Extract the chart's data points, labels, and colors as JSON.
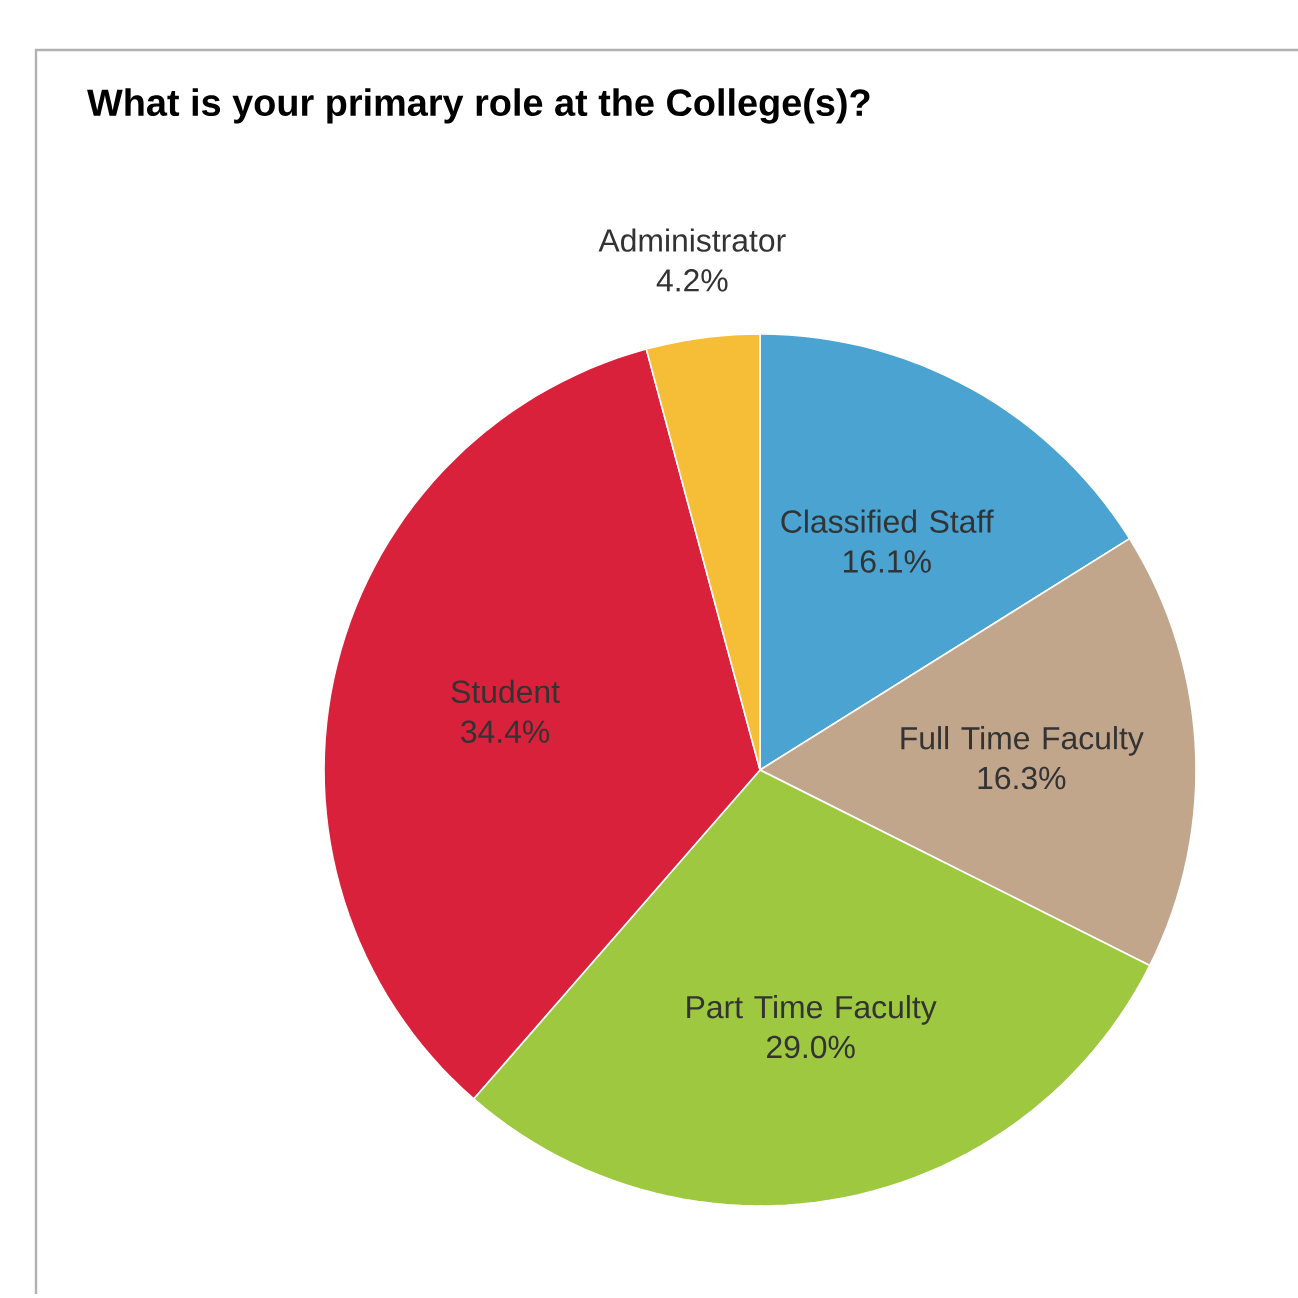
{
  "chart_data": {
    "type": "pie",
    "title": "What is your primary role at the College(s)?",
    "categories": [
      "Classified Staff",
      "Full Time Faculty",
      "Part Time Faculty",
      "Student",
      "Administrator"
    ],
    "values": [
      16.1,
      16.3,
      29.0,
      34.4,
      4.2
    ],
    "value_labels": [
      "16.1%",
      "16.3%",
      "29.0%",
      "34.4%",
      "4.2%"
    ],
    "colors": [
      "#4aa3d1",
      "#c2a68b",
      "#9dc83f",
      "#d9213b",
      "#f6be37"
    ],
    "legend": false
  }
}
